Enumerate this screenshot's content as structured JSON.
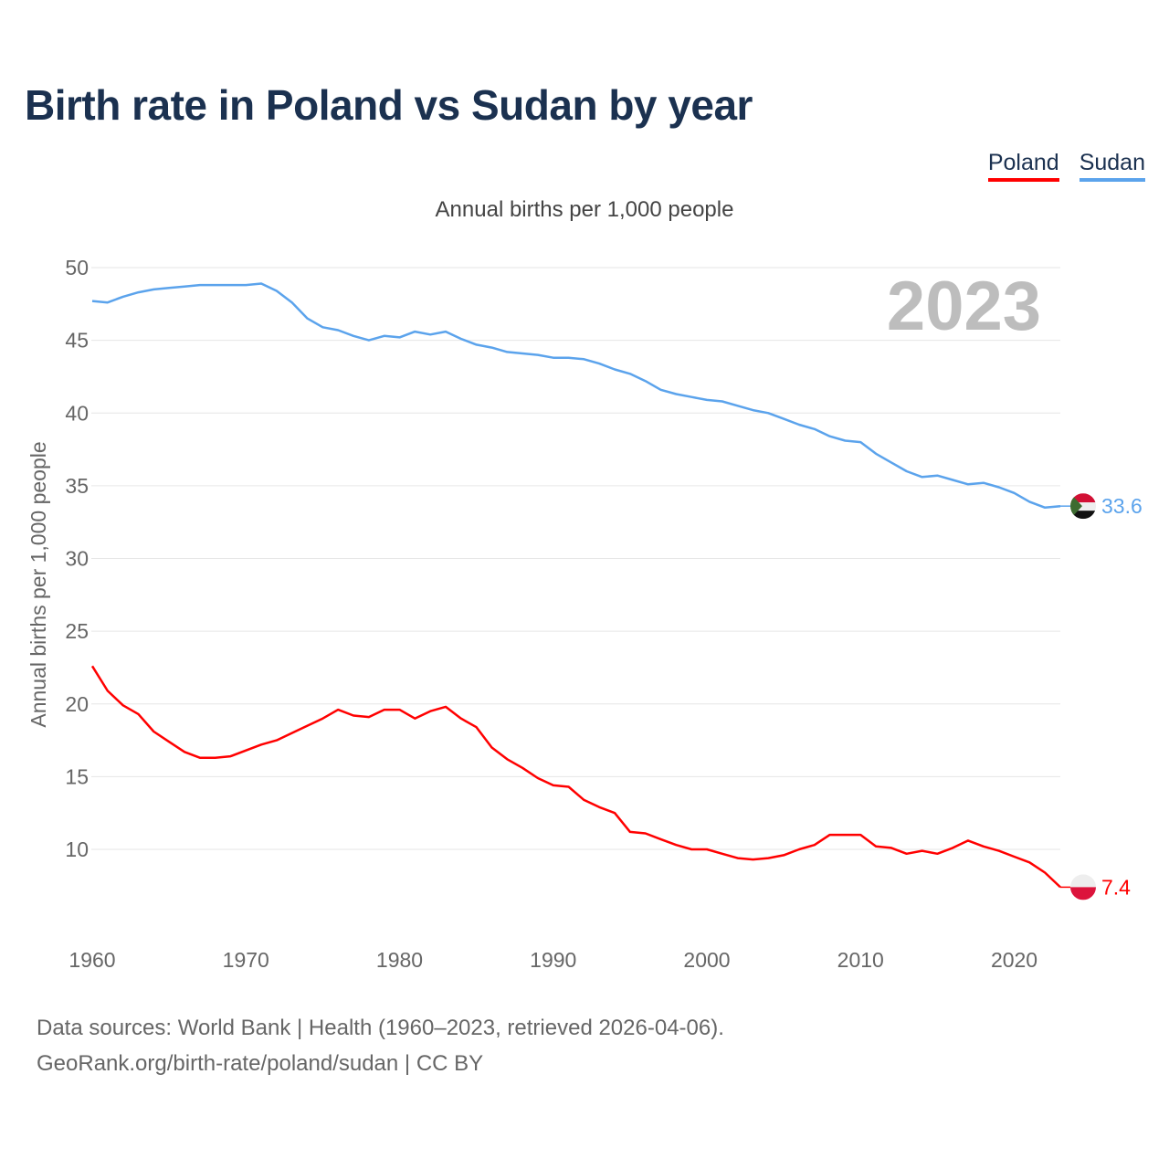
{
  "title": "Birth rate in Poland vs Sudan by year",
  "subtitle": "Annual births per 1,000 people",
  "footer": {
    "line1": "Data sources: World Bank | Health (1960–2023, retrieved 2026-04-06).",
    "line2": "GeoRank.org/birth-rate/poland/sudan | CC BY"
  },
  "chart_data": {
    "type": "line",
    "title": "Birth rate in Poland vs Sudan by year",
    "ylabel": "Annual births per 1,000 people",
    "xlabel": "",
    "year_label": "2023",
    "xlim": [
      1960,
      2023
    ],
    "ylim": [
      5,
      50
    ],
    "yticks": [
      "10",
      "15",
      "20",
      "25",
      "30",
      "35",
      "40",
      "45",
      "50"
    ],
    "xticks": [
      "1960",
      "1970",
      "1980",
      "1990",
      "2000",
      "2010",
      "2020"
    ],
    "legend_placement": "top-right",
    "series": [
      {
        "name": "Poland",
        "color": "#ff0000",
        "end_label": "7.4",
        "values": [
          22.6,
          20.9,
          19.9,
          19.3,
          18.1,
          17.4,
          16.7,
          16.3,
          16.3,
          16.4,
          16.8,
          17.2,
          17.5,
          18.0,
          18.5,
          19.0,
          19.6,
          19.2,
          19.1,
          19.6,
          19.6,
          19.0,
          19.5,
          19.8,
          19.0,
          18.4,
          17.0,
          16.2,
          15.6,
          14.9,
          14.4,
          14.3,
          13.4,
          12.9,
          12.5,
          11.2,
          11.1,
          10.7,
          10.3,
          10.0,
          10.0,
          9.7,
          9.4,
          9.3,
          9.4,
          9.6,
          10.0,
          10.3,
          11.0,
          11.0,
          11.0,
          10.2,
          10.1,
          9.7,
          9.9,
          9.7,
          10.1,
          10.6,
          10.2,
          9.9,
          9.5,
          9.1,
          8.4,
          7.4
        ]
      },
      {
        "name": "Sudan",
        "color": "#5ba3ec",
        "end_label": "33.6",
        "values": [
          47.7,
          47.6,
          48.0,
          48.3,
          48.5,
          48.6,
          48.7,
          48.8,
          48.8,
          48.8,
          48.8,
          48.9,
          48.4,
          47.6,
          46.5,
          45.9,
          45.7,
          45.3,
          45.0,
          45.3,
          45.2,
          45.6,
          45.4,
          45.6,
          45.1,
          44.7,
          44.5,
          44.2,
          44.1,
          44.0,
          43.8,
          43.8,
          43.7,
          43.4,
          43.0,
          42.7,
          42.2,
          41.6,
          41.3,
          41.1,
          40.9,
          40.8,
          40.5,
          40.2,
          40.0,
          39.6,
          39.2,
          38.9,
          38.4,
          38.1,
          38.0,
          37.2,
          36.6,
          36.0,
          35.6,
          35.7,
          35.4,
          35.1,
          35.2,
          34.9,
          34.5,
          33.9,
          33.5,
          33.6
        ]
      }
    ]
  }
}
